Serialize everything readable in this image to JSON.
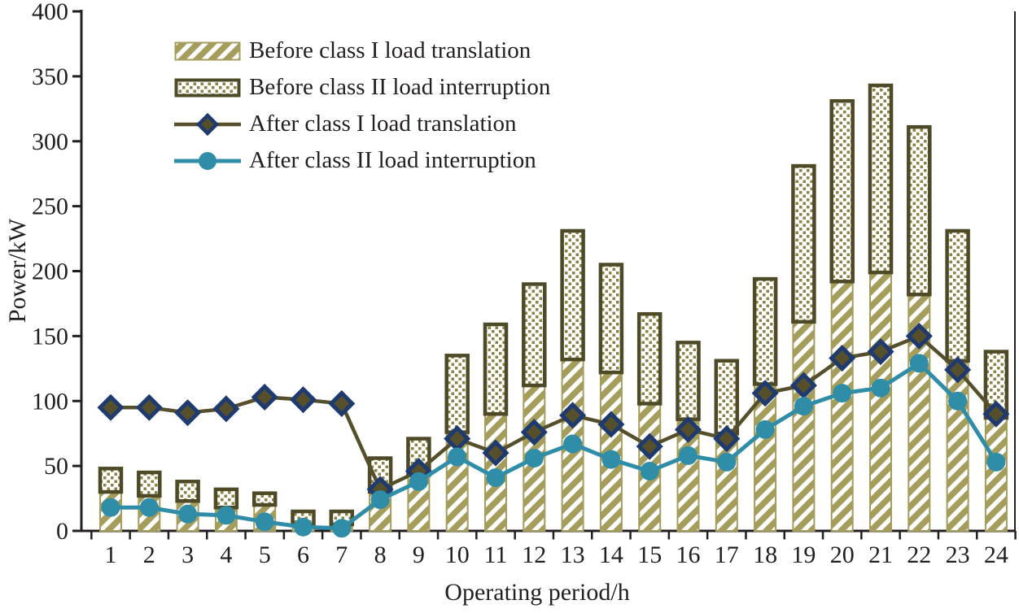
{
  "chart_data": {
    "type": "bar",
    "subtype": "stacked-bars-with-lines",
    "title": "",
    "xlabel": "Operating period/h",
    "ylabel": "Power/kW",
    "categories": [
      1,
      2,
      3,
      4,
      5,
      6,
      7,
      8,
      9,
      10,
      11,
      12,
      13,
      14,
      15,
      16,
      17,
      18,
      19,
      20,
      21,
      22,
      23,
      24
    ],
    "ylim": [
      0,
      400
    ],
    "yticks": [
      0,
      50,
      100,
      150,
      200,
      250,
      300,
      350,
      400
    ],
    "grid": false,
    "legend_position": "top-left-inside",
    "stacked": true,
    "bar_series": [
      {
        "name": "Before class I load translation",
        "style": "diagonal-hatch",
        "values": [
          30,
          27,
          23,
          18,
          20,
          5,
          5,
          30,
          43,
          76,
          90,
          112,
          132,
          122,
          98,
          86,
          75,
          113,
          161,
          192,
          199,
          182,
          131,
          87
        ]
      },
      {
        "name": "Before class II load interruption",
        "style": "dotted",
        "values": [
          18,
          18,
          15,
          14,
          9,
          10,
          10,
          26,
          28,
          59,
          69,
          78,
          99,
          83,
          69,
          59,
          56,
          81,
          120,
          139,
          144,
          129,
          100,
          51
        ]
      }
    ],
    "stack_totals": [
      48,
      45,
      38,
      32,
      29,
      15,
      15,
      56,
      71,
      135,
      159,
      190,
      231,
      205,
      167,
      145,
      131,
      194,
      281,
      331,
      343,
      311,
      231,
      138
    ],
    "line_series": [
      {
        "name": "After class I load translation",
        "marker": "diamond",
        "values": [
          95,
          95,
          91,
          94,
          103,
          101,
          98,
          32,
          46,
          71,
          60,
          76,
          89,
          82,
          65,
          78,
          71,
          106,
          112,
          133,
          138,
          150,
          124,
          90
        ]
      },
      {
        "name": "After class II load interruption",
        "marker": "circle",
        "values": [
          18,
          18,
          13,
          12,
          7,
          3,
          2,
          24,
          38,
          57,
          41,
          56,
          67,
          55,
          46,
          58,
          53,
          78,
          96,
          106,
          110,
          129,
          100,
          53
        ]
      }
    ],
    "colors": {
      "bar_fill": "#a49d5c",
      "bar_border": "#4e4a27",
      "dot_color": "#8a8345",
      "line1": "#554f2b",
      "marker1_stroke": "#1f3a6e",
      "line2": "#2f8da8",
      "axis": "#231f20",
      "background": "#ffffff"
    }
  }
}
